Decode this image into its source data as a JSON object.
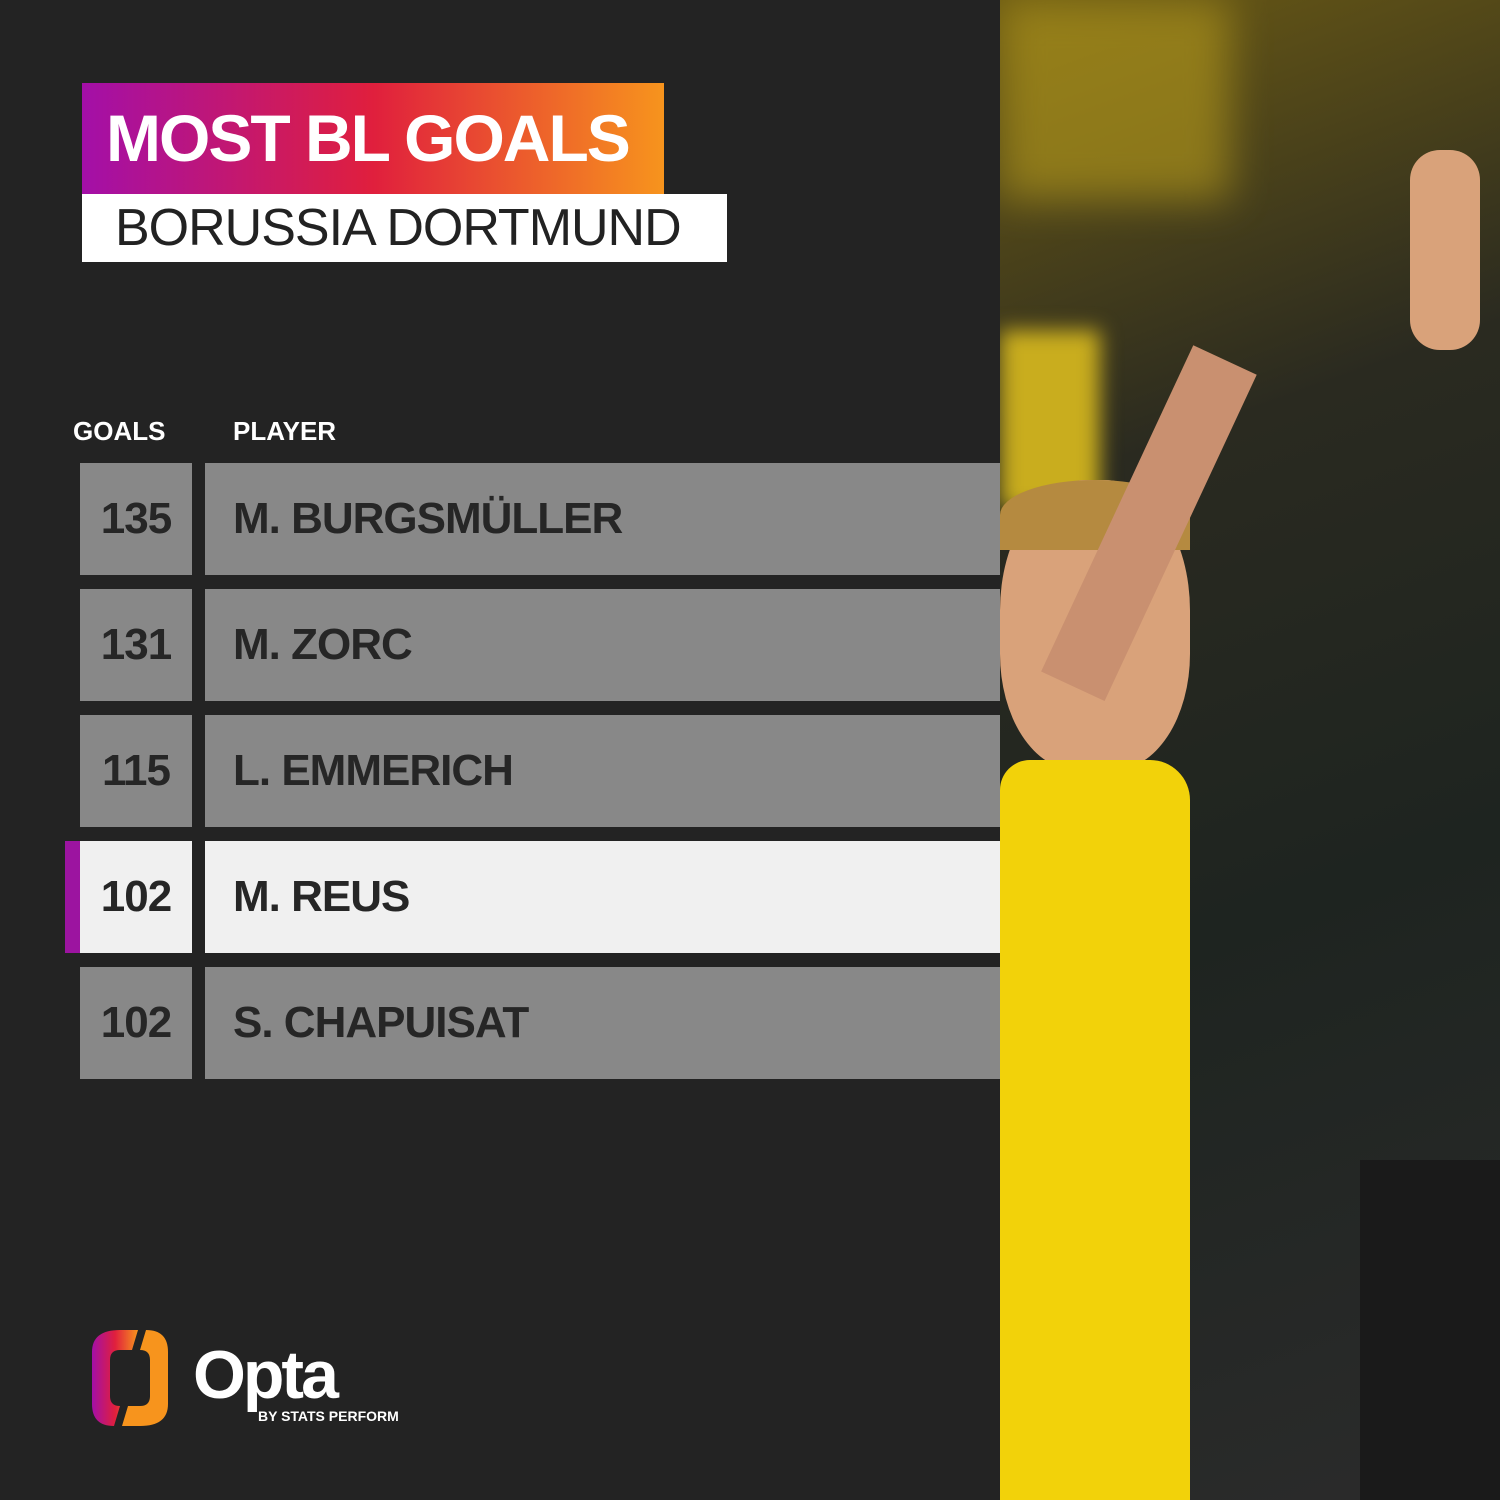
{
  "header": {
    "title": "MOST BL GOALS",
    "subtitle": "BORUSSIA DORTMUND"
  },
  "columns": {
    "goals": "GOALS",
    "player": "PLAYER"
  },
  "rows": [
    {
      "goals": "135",
      "player": "M. BURGSMÜLLER",
      "highlighted": false
    },
    {
      "goals": "131",
      "player": "M. ZORC",
      "highlighted": false
    },
    {
      "goals": "115",
      "player": "L. EMMERICH",
      "highlighted": false
    },
    {
      "goals": "102",
      "player": "M. REUS",
      "highlighted": true
    },
    {
      "goals": "102",
      "player": "S. CHAPUISAT",
      "highlighted": false
    }
  ],
  "colors": {
    "background": "#232323",
    "row": "#888888",
    "highlight_row": "#f0f0f0",
    "highlight_bar": "#9c14a0",
    "gradient": [
      "#a30fa8",
      "#e01f3d",
      "#f7941d"
    ]
  },
  "logo": {
    "name": "Opta",
    "tagline": "BY STATS PERFORM"
  }
}
